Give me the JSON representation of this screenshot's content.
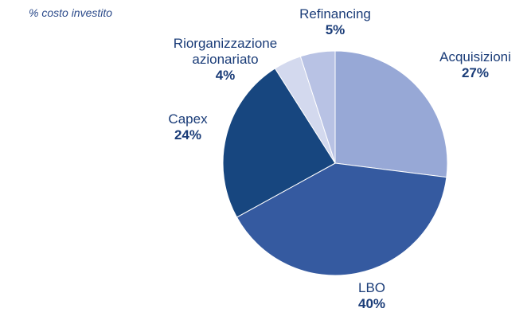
{
  "chart_data": {
    "type": "pie",
    "subtitle": "% costo investito",
    "categories": [
      "Acquisizioni",
      "LBO",
      "Capex",
      "Riorganizzazione azionariato",
      "Refinancing"
    ],
    "values": [
      27,
      40,
      24,
      4,
      5
    ],
    "value_labels": [
      "27%",
      "40%",
      "24%",
      "4%",
      "5%"
    ],
    "colors": [
      "#97a8d6",
      "#355aa0",
      "#17467f",
      "#d3d9ee",
      "#b8c2e4"
    ]
  }
}
